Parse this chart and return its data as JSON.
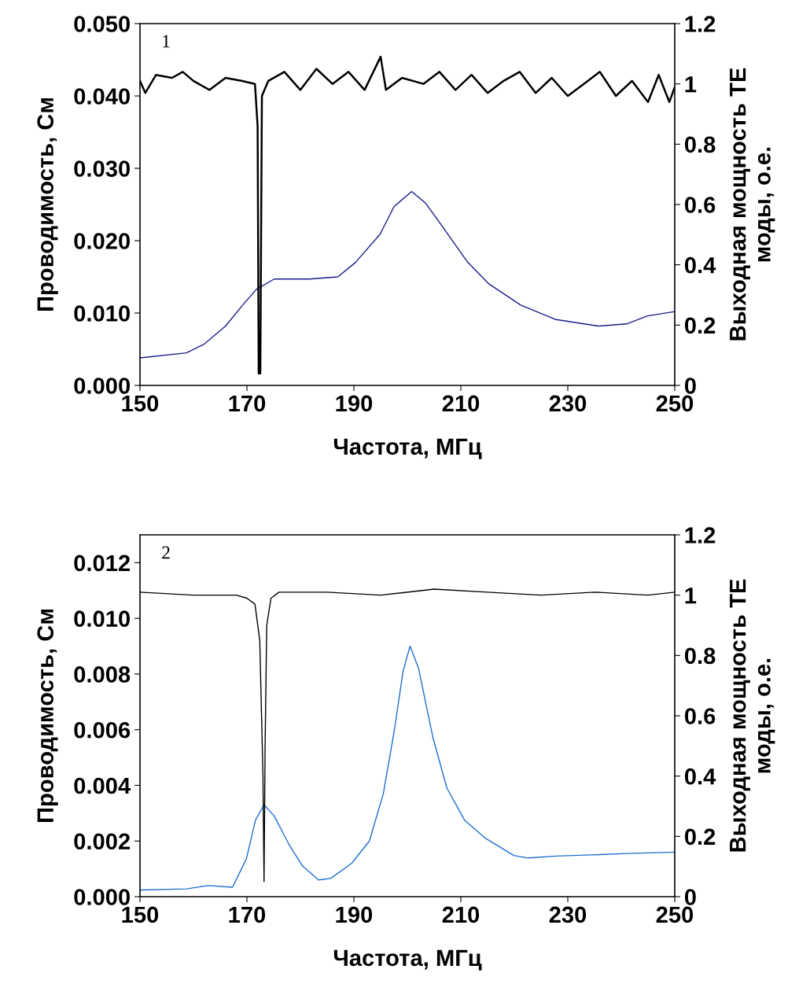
{
  "chart_data": [
    {
      "type": "line",
      "annotations": [
        "1"
      ],
      "xlabel": "Частота, МГц",
      "ylabel": "Проводимость, См",
      "y2label": "Выходная мощность ТЕ\nмоды, о.е.",
      "xlim": [
        150,
        250
      ],
      "xticks": [
        150,
        170,
        190,
        210,
        230,
        250
      ],
      "ylim": [
        0,
        0.05
      ],
      "yticks": [
        {
          "value": 0,
          "label": "0.000"
        },
        {
          "value": 0.01,
          "label": "0.010"
        },
        {
          "value": 0.02,
          "label": "0.020"
        },
        {
          "value": 0.03,
          "label": "0.030"
        },
        {
          "value": 0.04,
          "label": "0.040"
        },
        {
          "value": 0.05,
          "label": "0.050"
        }
      ],
      "y2lim": [
        0,
        1.2
      ],
      "y2ticks": [
        0,
        0.2,
        0.4,
        0.6,
        0.8,
        1,
        1.2
      ],
      "grid": false,
      "legend": false,
      "series": [
        {
          "color": "#1a1a8c",
          "x": [
            150,
            158.7,
            162,
            166,
            169.2,
            171.8,
            175.1,
            181.7,
            187,
            190.3,
            194.9,
            197.5,
            200.8,
            203.4,
            206.7,
            211.3,
            215.3,
            221.2,
            227.8,
            235.7,
            241,
            244.9,
            250
          ],
          "values": [
            0.0038,
            0.0045,
            0.0057,
            0.0082,
            0.0111,
            0.0133,
            0.0147,
            0.0147,
            0.015,
            0.017,
            0.0209,
            0.0247,
            0.0268,
            0.0252,
            0.0218,
            0.017,
            0.014,
            0.0111,
            0.0091,
            0.0082,
            0.0085,
            0.0096,
            0.0102
          ]
        },
        {
          "color": "#000000",
          "axis": "y2",
          "x": [
            150,
            151,
            153,
            156,
            158,
            160,
            163,
            166,
            169,
            171.5,
            172,
            172.2,
            172.5,
            172.8,
            174,
            177,
            180,
            183,
            186,
            189,
            192,
            195,
            196,
            199,
            203,
            206,
            209,
            212,
            215,
            218,
            221,
            224,
            227,
            230,
            233,
            236,
            239,
            242,
            245,
            247,
            249,
            250
          ],
          "values": [
            1.01,
            0.97,
            1.03,
            1.02,
            1.04,
            1.01,
            0.98,
            1.02,
            1.01,
            1.0,
            0.86,
            0.04,
            0.04,
            0.96,
            1.01,
            1.04,
            0.98,
            1.05,
            1.0,
            1.04,
            0.98,
            1.09,
            0.98,
            1.02,
            1.0,
            1.04,
            0.98,
            1.03,
            0.97,
            1.01,
            1.04,
            0.97,
            1.02,
            0.96,
            1.0,
            1.04,
            0.96,
            1.01,
            0.94,
            1.03,
            0.94,
            0.99
          ]
        }
      ]
    },
    {
      "type": "line",
      "annotations": [
        "2"
      ],
      "xlabel": "Частота, МГц",
      "ylabel": "Проводимость, См",
      "y2label": "Выходная мощность ТЕ\nмоды, о.е.",
      "xlim": [
        150,
        250
      ],
      "xticks": [
        150,
        170,
        190,
        210,
        230,
        250
      ],
      "ylim": [
        0,
        0.013
      ],
      "yticks": [
        {
          "value": 0,
          "label": "0.000"
        },
        {
          "value": 0.002,
          "label": "0.002"
        },
        {
          "value": 0.004,
          "label": "0.004"
        },
        {
          "value": 0.006,
          "label": "0.006"
        },
        {
          "value": 0.008,
          "label": "0.008"
        },
        {
          "value": 0.01,
          "label": "0.010"
        },
        {
          "value": 0.012,
          "label": "0.012"
        }
      ],
      "y2lim": [
        0,
        1.2
      ],
      "y2ticks": [
        0,
        0.2,
        0.4,
        0.6,
        0.8,
        1,
        1.2
      ],
      "grid": false,
      "legend": false,
      "series": [
        {
          "color": "#1e6fd0",
          "x": [
            150,
            158.7,
            162.7,
            167.3,
            169.9,
            171.6,
            173.2,
            175.1,
            177.8,
            180.4,
            183.4,
            185.7,
            189.6,
            192.9,
            195.5,
            197.5,
            199.2,
            200.5,
            202.1,
            204.8,
            207.4,
            210.7,
            214.6,
            219.9,
            222.6,
            227.8,
            234.4,
            241,
            250
          ],
          "values": [
            0.00024,
            0.00028,
            0.0004,
            0.00034,
            0.00136,
            0.00275,
            0.0033,
            0.0029,
            0.0019,
            0.0011,
            0.0006,
            0.00066,
            0.0012,
            0.002,
            0.0037,
            0.0059,
            0.0081,
            0.009,
            0.0082,
            0.0057,
            0.0039,
            0.00275,
            0.0021,
            0.00148,
            0.00139,
            0.00146,
            0.0015,
            0.00155,
            0.0016
          ]
        },
        {
          "color": "#000000",
          "axis": "y2",
          "x": [
            150,
            160,
            168,
            170,
            171.5,
            172.4,
            173,
            173.2,
            173.4,
            173.7,
            174.5,
            176,
            185,
            195,
            205,
            215,
            225,
            235,
            245,
            250
          ],
          "values": [
            1.01,
            1.0,
            1.0,
            0.99,
            0.97,
            0.85,
            0.4,
            0.05,
            0.5,
            0.9,
            0.99,
            1.01,
            1.01,
            1.0,
            1.02,
            1.01,
            1.0,
            1.01,
            1.0,
            1.01
          ]
        }
      ]
    }
  ]
}
